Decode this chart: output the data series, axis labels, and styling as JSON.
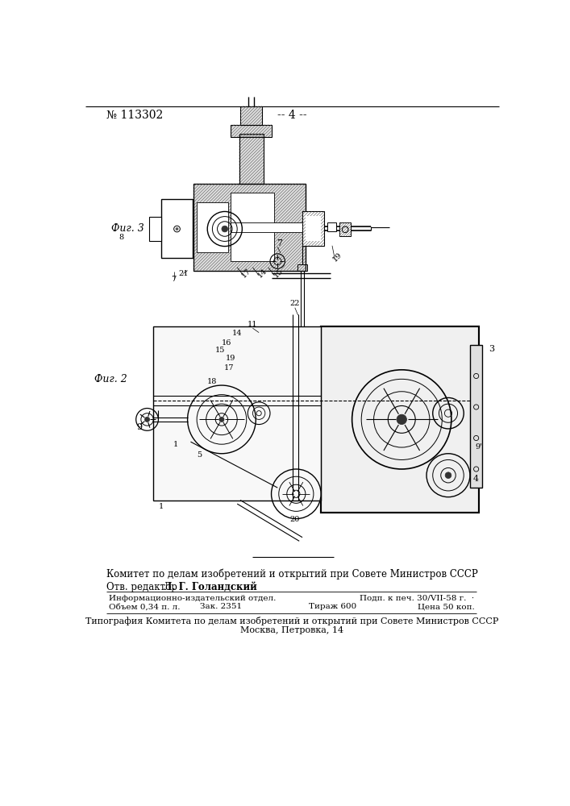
{
  "patent_number": "№ 113302",
  "page_number": "-- 4 --",
  "fig2_label": "Фиг. 2",
  "fig3_label": "Фиг. 3",
  "footer_line1": "Комитет по делам изобретений и открытий при Совете Министров СССР",
  "footer_line2a": "Отв. редактор ",
  "footer_line2b": "Л. Г. Голандский",
  "footer_col1_row1": "Информационно-издательский отдел.",
  "footer_col1_row2a": "Объем 0,34 п. л.",
  "footer_col1_row2b": "Зак. 2351",
  "footer_col1_row2c": "Тираж 600",
  "footer_col2_row1": "Подп. к печ. 30/VII-58 г.  ·",
  "footer_col2_row2": "Цена 50 коп.",
  "footer_line5": "Типография Комитета по делам изобретений и открытий при Совете Министров СССР",
  "footer_line6": "Москва, Петровка, 14",
  "bg_color": "#ffffff",
  "line_color": "#000000"
}
